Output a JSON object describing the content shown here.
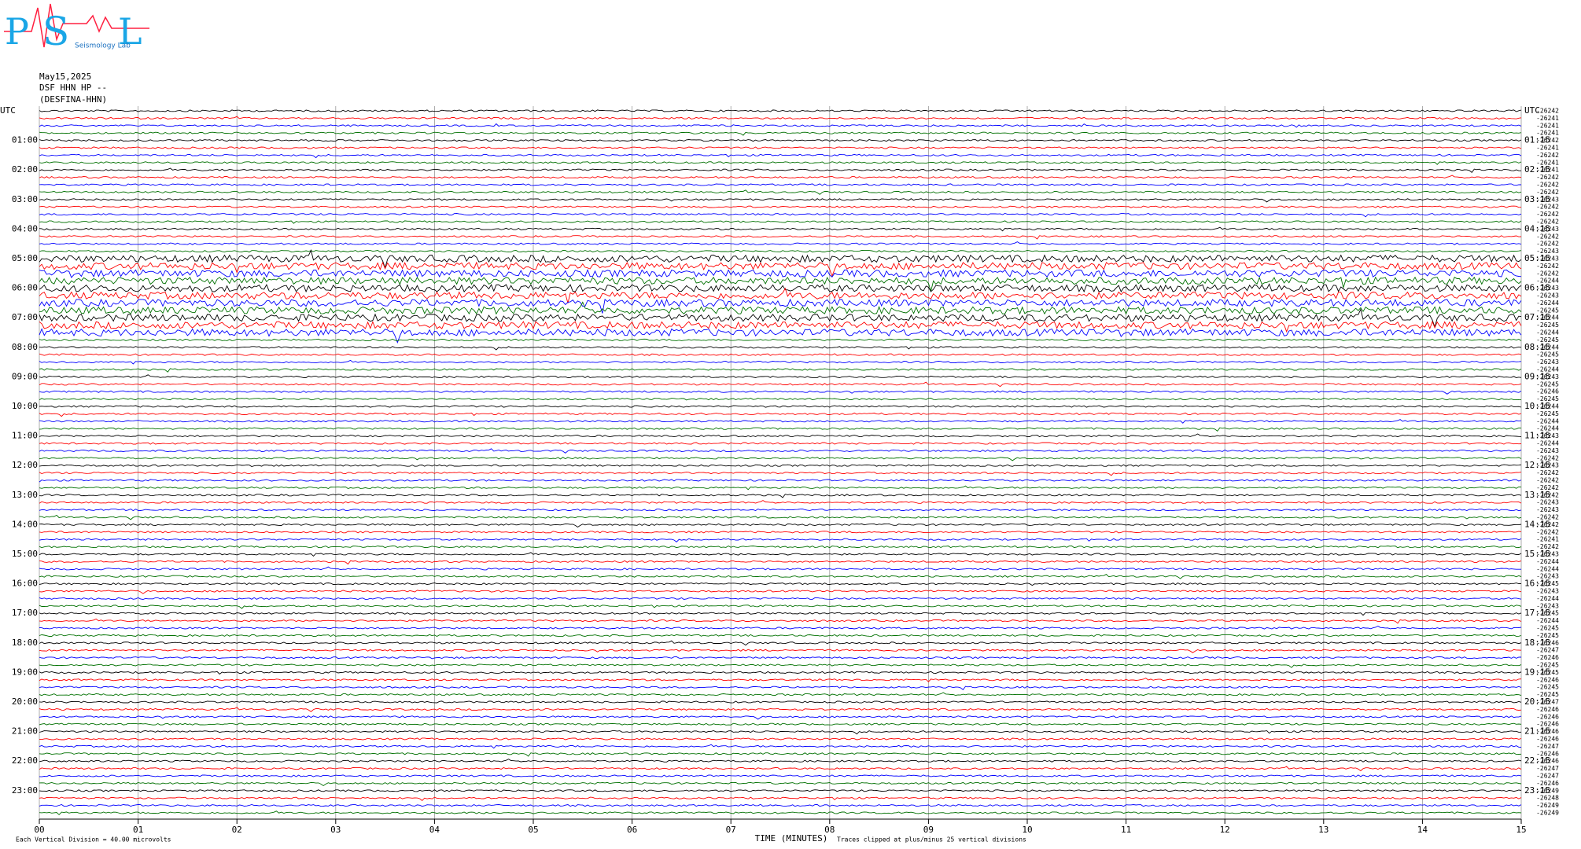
{
  "logo": {
    "letters": [
      "P",
      "S",
      "L"
    ],
    "caption": "Seismology Lab"
  },
  "header": {
    "date": "May15,2025",
    "channel": "DSF HHN HP --",
    "station": "(DESFINA-HHN)"
  },
  "left_labels": [
    "UTC",
    "01:00",
    "02:00",
    "03:00",
    "04:00",
    "05:00",
    "06:00",
    "07:00",
    "08:00",
    "09:00",
    "10:00",
    "11:00",
    "12:00",
    "13:00",
    "14:00",
    "15:00",
    "16:00",
    "17:00",
    "18:00",
    "19:00",
    "20:00",
    "21:00",
    "22:00",
    "23:00"
  ],
  "right_labels": [
    "UTC",
    "01:15",
    "02:15",
    "03:15",
    "04:15",
    "05:15",
    "06:15",
    "07:15",
    "08:15",
    "09:15",
    "10:15",
    "11:15",
    "12:15",
    "13:15",
    "14:15",
    "15:15",
    "16:15",
    "17:15",
    "18:15",
    "19:15",
    "20:15",
    "21:15",
    "22:15",
    "23:15"
  ],
  "row_counts": [
    "-26242",
    "-26241",
    "-26241",
    "-26241",
    "-26242",
    "-26241",
    "-26242",
    "-26241",
    "-26241",
    "-26242",
    "-26242",
    "-26242",
    "-26243",
    "-26242",
    "-26242",
    "-26242",
    "-26243",
    "-26242",
    "-26242",
    "-26243",
    "-26243",
    "-26242",
    "-26242",
    "-26244",
    "-26243",
    "-26243",
    "-26244",
    "-26245",
    "-26244",
    "-26245",
    "-26244",
    "-26245",
    "-26244",
    "-26245",
    "-26243",
    "-26244",
    "-26243",
    "-26245",
    "-26246",
    "-26245",
    "-26244",
    "-26245",
    "-26244",
    "-26244",
    "-26243",
    "-26244",
    "-26243",
    "-26242",
    "-26243",
    "-26242",
    "-26242",
    "-26242",
    "-26242",
    "-26243",
    "-26243",
    "-26242",
    "-26242",
    "-26242",
    "-26241",
    "-26242",
    "-26243",
    "-26244",
    "-26244",
    "-26243",
    "-26245",
    "-26243",
    "-26244",
    "-26243",
    "-26245",
    "-26244",
    "-26245",
    "-26245",
    "-26246",
    "-26247",
    "-26246",
    "-26245",
    "-26245",
    "-26246",
    "-26245",
    "-26245",
    "-26247",
    "-26246",
    "-26246",
    "-26246",
    "-26246",
    "-26246",
    "-26247",
    "-26246",
    "-26246",
    "-26247",
    "-26247",
    "-26246",
    "-26249",
    "-26248",
    "-26249",
    "-26249"
  ],
  "x_ticks": [
    "00",
    "01",
    "02",
    "03",
    "04",
    "05",
    "06",
    "07",
    "08",
    "09",
    "10",
    "11",
    "12",
    "13",
    "14",
    "15"
  ],
  "x_label": "TIME (MINUTES)",
  "footer": {
    "scale": "Each Vertical Division =   40.00 microvolts",
    "clip": "Traces clipped at plus/minus 25 vertical divisions"
  },
  "trace_colors": [
    "#000000",
    "#ff0000",
    "#0000ff",
    "#007000"
  ]
}
